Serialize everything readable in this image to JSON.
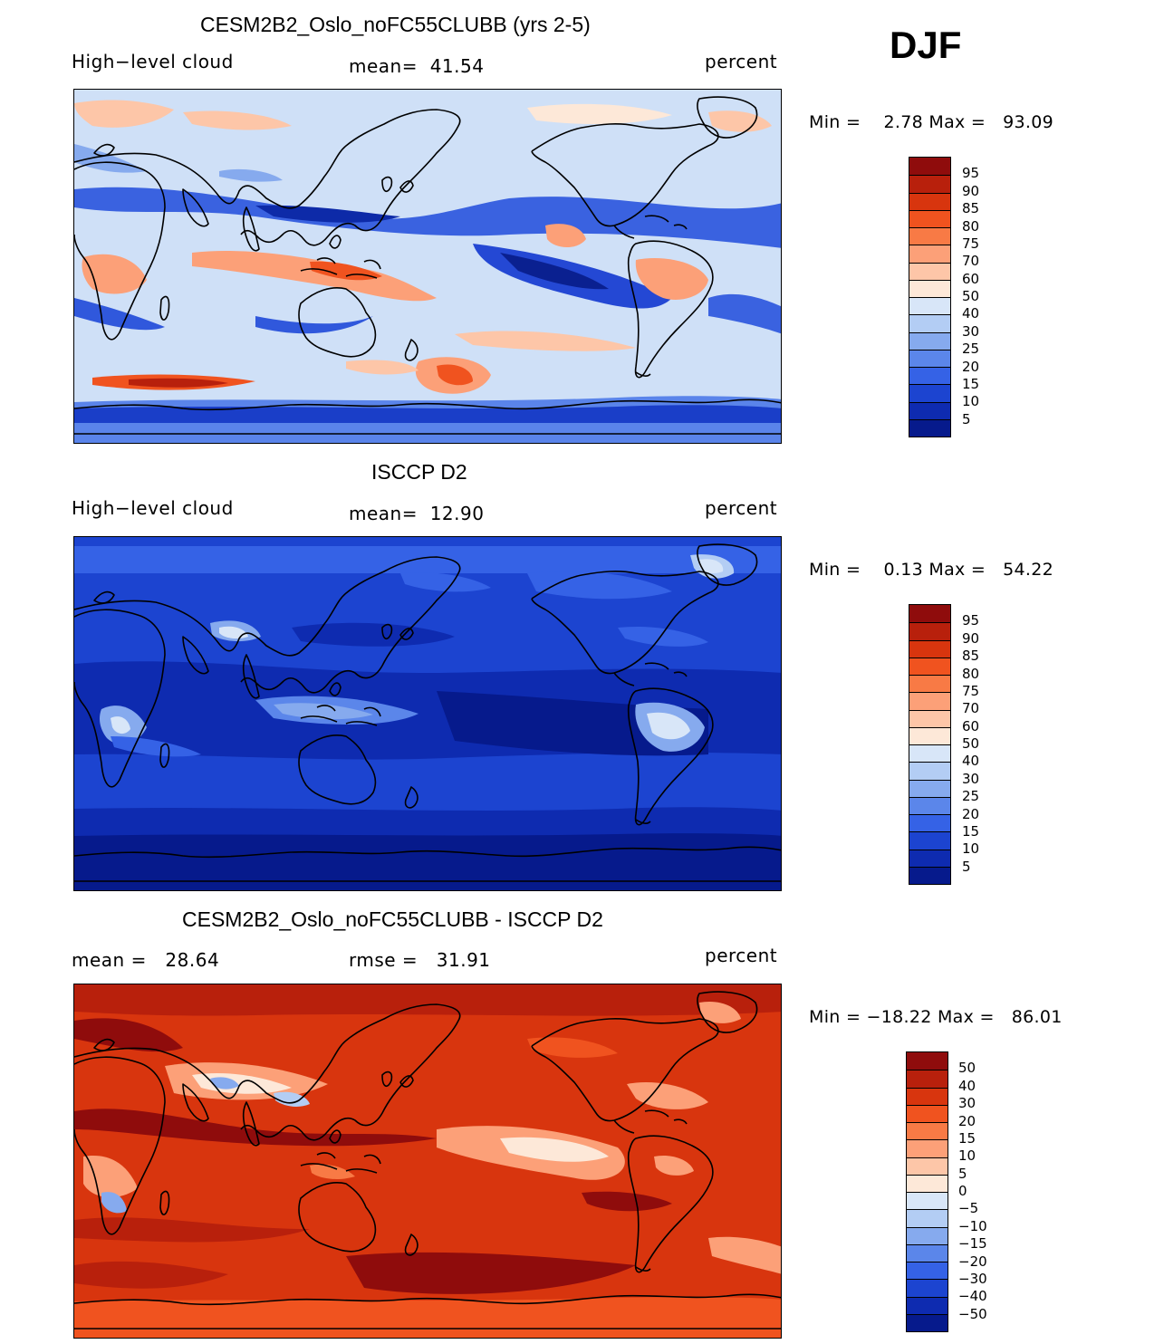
{
  "season": "DJF",
  "panels": [
    {
      "title": "CESM2B2_Oslo_noFC55CLUBB (yrs 2-5)",
      "left_label": "High−level cloud",
      "center_label": "mean=  41.54",
      "right_label": "percent",
      "minmax": "Min =    2.78 Max =   93.09",
      "colorbar": {
        "labels": [
          "95",
          "90",
          "85",
          "80",
          "75",
          "70",
          "60",
          "50",
          "40",
          "30",
          "25",
          "20",
          "15",
          "10",
          "5"
        ],
        "colors": [
          "#8f0c0c",
          "#b8200c",
          "#d8350e",
          "#f0531f",
          "#f87a45",
          "#fca078",
          "#fdc6a8",
          "#fde8d8",
          "#d8e6f8",
          "#b3cdf4",
          "#86aaee",
          "#5b86ea",
          "#3562e6",
          "#1c44d0",
          "#0e2bb0",
          "#061a8c"
        ]
      }
    },
    {
      "title": "ISCCP D2",
      "left_label": "High−level cloud",
      "center_label": "mean=  12.90",
      "right_label": "percent",
      "minmax": "Min =    0.13 Max =   54.22",
      "colorbar": {
        "labels": [
          "95",
          "90",
          "85",
          "80",
          "75",
          "70",
          "60",
          "50",
          "40",
          "30",
          "25",
          "20",
          "15",
          "10",
          "5"
        ],
        "colors": [
          "#8f0c0c",
          "#b8200c",
          "#d8350e",
          "#f0531f",
          "#f87a45",
          "#fca078",
          "#fdc6a8",
          "#fde8d8",
          "#d8e6f8",
          "#b3cdf4",
          "#86aaee",
          "#5b86ea",
          "#3562e6",
          "#1c44d0",
          "#0e2bb0",
          "#061a8c"
        ]
      }
    },
    {
      "title": "CESM2B2_Oslo_noFC55CLUBB - ISCCP D2",
      "left_label": "mean =   28.64",
      "center_label": "rmse =   31.91",
      "right_label": "percent",
      "minmax": "Min = −18.22 Max =   86.01",
      "colorbar": {
        "labels": [
          "50",
          "40",
          "30",
          "20",
          "15",
          "10",
          "5",
          "0",
          "−5",
          "−10",
          "−15",
          "−20",
          "−30",
          "−40",
          "−50"
        ],
        "colors": [
          "#8f0c0c",
          "#b8200c",
          "#d8350e",
          "#f0531f",
          "#f87a45",
          "#fca078",
          "#fdc6a8",
          "#fde8d8",
          "#d8e6f8",
          "#b3cdf4",
          "#86aaee",
          "#5b86ea",
          "#3562e6",
          "#1c44d0",
          "#0e2bb0",
          "#061a8c"
        ]
      }
    }
  ]
}
